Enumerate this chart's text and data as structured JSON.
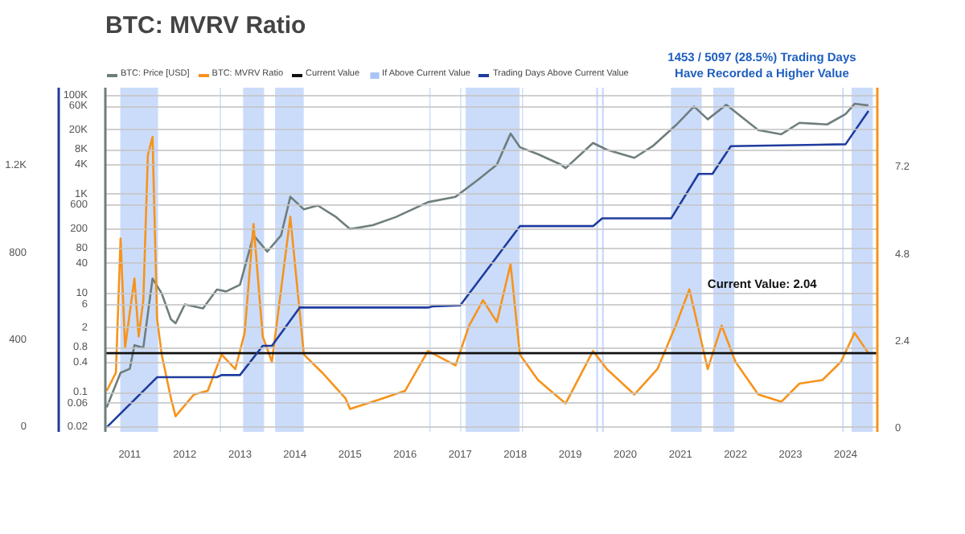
{
  "chart_data": {
    "type": "line",
    "title": "BTC: MVRV Ratio",
    "annotations": [
      "1453 / 5097 (28.5%) Trading Days\nHave Recorded a Higher Value",
      "Current Value: 2.04"
    ],
    "series": [
      {
        "name": "BTC: Price [USD]",
        "color": "#6f7d7d",
        "x": [
          "2010-08",
          "2010-11",
          "2011-01",
          "2011-02",
          "2011-04",
          "2011-06",
          "2011-08",
          "2011-10",
          "2011-11",
          "2012-01",
          "2012-05",
          "2012-08",
          "2012-10",
          "2013-01",
          "2013-04",
          "2013-07",
          "2013-10",
          "2013-12",
          "2014-03",
          "2014-06",
          "2014-10",
          "2015-01",
          "2015-06",
          "2015-11",
          "2016-06",
          "2016-12",
          "2017-05",
          "2017-09",
          "2017-12",
          "2018-02",
          "2018-06",
          "2018-11",
          "2018-12",
          "2019-06",
          "2019-09",
          "2020-03",
          "2020-07",
          "2020-12",
          "2021-04",
          "2021-07",
          "2021-11",
          "2022-06",
          "2022-11",
          "2023-03",
          "2023-09",
          "2024-01",
          "2024-03",
          "2024-06"
        ],
        "values": [
          0.05,
          0.25,
          0.3,
          0.9,
          0.8,
          20,
          10,
          3,
          2.5,
          6,
          5,
          12,
          11,
          15,
          150,
          70,
          150,
          900,
          500,
          600,
          350,
          200,
          240,
          350,
          700,
          900,
          2000,
          4000,
          17000,
          9000,
          6500,
          4000,
          3400,
          11000,
          8000,
          5500,
          9500,
          25000,
          60000,
          33000,
          65000,
          20000,
          16500,
          28000,
          26000,
          42000,
          68000,
          63000
        ]
      },
      {
        "name": "BTC: MVRV Ratio",
        "color": "#f7931a",
        "axis": "y2",
        "x": [
          "2010-08",
          "2010-10",
          "2010-11",
          "2010-12",
          "2011-02",
          "2011-03",
          "2011-04",
          "2011-05",
          "2011-06",
          "2011-07",
          "2011-08",
          "2011-10",
          "2011-11",
          "2012-03",
          "2012-06",
          "2012-09",
          "2012-12",
          "2013-02",
          "2013-04",
          "2013-06",
          "2013-08",
          "2013-12",
          "2014-03",
          "2014-07",
          "2014-12",
          "2015-01",
          "2015-06",
          "2016-01",
          "2016-06",
          "2016-12",
          "2017-03",
          "2017-06",
          "2017-09",
          "2017-12",
          "2018-02",
          "2018-06",
          "2018-12",
          "2019-06",
          "2019-09",
          "2020-03",
          "2020-08",
          "2020-12",
          "2021-03",
          "2021-07",
          "2021-10",
          "2022-01",
          "2022-06",
          "2022-11",
          "2023-03",
          "2023-08",
          "2023-12",
          "2024-03",
          "2024-06"
        ],
        "values": [
          1.0,
          1.5,
          5.2,
          2.2,
          4.1,
          2.5,
          3.5,
          7.5,
          8.0,
          3.0,
          2.0,
          0.8,
          0.3,
          0.9,
          1.0,
          2.0,
          1.6,
          2.6,
          5.6,
          2.5,
          1.8,
          5.8,
          2.0,
          1.5,
          0.8,
          0.5,
          0.7,
          1.0,
          2.1,
          1.7,
          2.8,
          3.5,
          2.9,
          4.5,
          2.0,
          1.3,
          0.65,
          2.1,
          1.6,
          0.9,
          1.6,
          2.8,
          3.8,
          1.6,
          2.8,
          1.8,
          0.9,
          0.7,
          1.2,
          1.3,
          1.8,
          2.6,
          2.04
        ]
      },
      {
        "name": "Trading Days Above Current Value",
        "color": "#1f3c9e",
        "axis": "y3",
        "x": [
          "2010-08",
          "2011-07",
          "2012-08",
          "2012-09",
          "2013-01",
          "2013-06",
          "2013-08",
          "2014-02",
          "2016-06",
          "2016-07",
          "2017-01",
          "2018-02",
          "2019-06",
          "2019-08",
          "2020-11",
          "2021-05",
          "2021-08",
          "2021-12",
          "2024-01",
          "2024-06"
        ],
        "values": [
          0,
          230,
          230,
          240,
          240,
          374,
          374,
          550,
          550,
          555,
          560,
          924,
          924,
          960,
          960,
          1164,
          1164,
          1291,
          1300,
          1453
        ]
      }
    ],
    "ref_lines": [
      {
        "axis": "y2",
        "value": 2.04,
        "label": "Current Value",
        "color": "#111111"
      }
    ],
    "bands": [
      {
        "axis": "x",
        "from": "2010-10-30",
        "to": "2011-07-08",
        "label": "If Above Current Value",
        "color": "#a9c5f6"
      },
      {
        "axis": "x",
        "from": "2012-08-20",
        "to": "2012-08-28",
        "color": "#a9c5f6"
      },
      {
        "axis": "x",
        "from": "2013-01-22",
        "to": "2013-06-10",
        "color": "#a9c5f6"
      },
      {
        "axis": "x",
        "from": "2013-08-22",
        "to": "2014-02-28",
        "color": "#a9c5f6"
      },
      {
        "axis": "x",
        "from": "2016-06-10",
        "to": "2016-06-18",
        "color": "#a9c5f6"
      },
      {
        "axis": "x",
        "from": "2017-01-01",
        "to": "2017-01-08",
        "color": "#a9c5f6"
      },
      {
        "axis": "x",
        "from": "2017-02-06",
        "to": "2018-01-30",
        "color": "#a9c5f6"
      },
      {
        "axis": "x",
        "from": "2018-02-15",
        "to": "2018-02-22",
        "color": "#a9c5f6"
      },
      {
        "axis": "x",
        "from": "2019-06-22",
        "to": "2019-07-05",
        "color": "#a9c5f6"
      },
      {
        "axis": "x",
        "from": "2019-07-30",
        "to": "2019-08-12",
        "color": "#a9c5f6"
      },
      {
        "axis": "x",
        "from": "2020-10-30",
        "to": "2021-05-22",
        "color": "#a9c5f6"
      },
      {
        "axis": "x",
        "from": "2021-08-07",
        "to": "2021-12-24",
        "color": "#a9c5f6"
      },
      {
        "axis": "x",
        "from": "2023-12-10",
        "to": "2023-12-20",
        "color": "#a9c5f6"
      },
      {
        "axis": "x",
        "from": "2024-02-10",
        "to": "2024-06-30",
        "color": "#a9c5f6"
      }
    ],
    "xlim": [
      "2010-07-23",
      "2024-07-30"
    ],
    "xticks": [
      "2011",
      "2012",
      "2013",
      "2014",
      "2015",
      "2016",
      "2017",
      "2018",
      "2019",
      "2020",
      "2021",
      "2022",
      "2023",
      "2024"
    ],
    "log": "y",
    "ylim": [
      0.016,
      144000
    ],
    "yticks": [
      0.02,
      0.06,
      0.1,
      0.4,
      0.8,
      2,
      6,
      10,
      40,
      80,
      200,
      600,
      {
        "value": 1000,
        "label": "1K"
      },
      {
        "value": 4000,
        "label": "4K"
      },
      {
        "value": 8000,
        "label": "8K"
      },
      {
        "value": 20000,
        "label": "20K"
      },
      {
        "value": 60000,
        "label": "60K"
      },
      {
        "value": 100000,
        "label": "100K"
      }
    ],
    "y2lim": [
      -0.13,
      9.36
    ],
    "y2ticks": [
      0,
      2.4,
      4.8,
      7.2
    ],
    "y3lim": [
      -21,
      1560
    ],
    "y3ticks": [
      0,
      400,
      800,
      {
        "value": 1200,
        "label": "1.2K"
      }
    ],
    "grid": "y",
    "legend": "top"
  }
}
